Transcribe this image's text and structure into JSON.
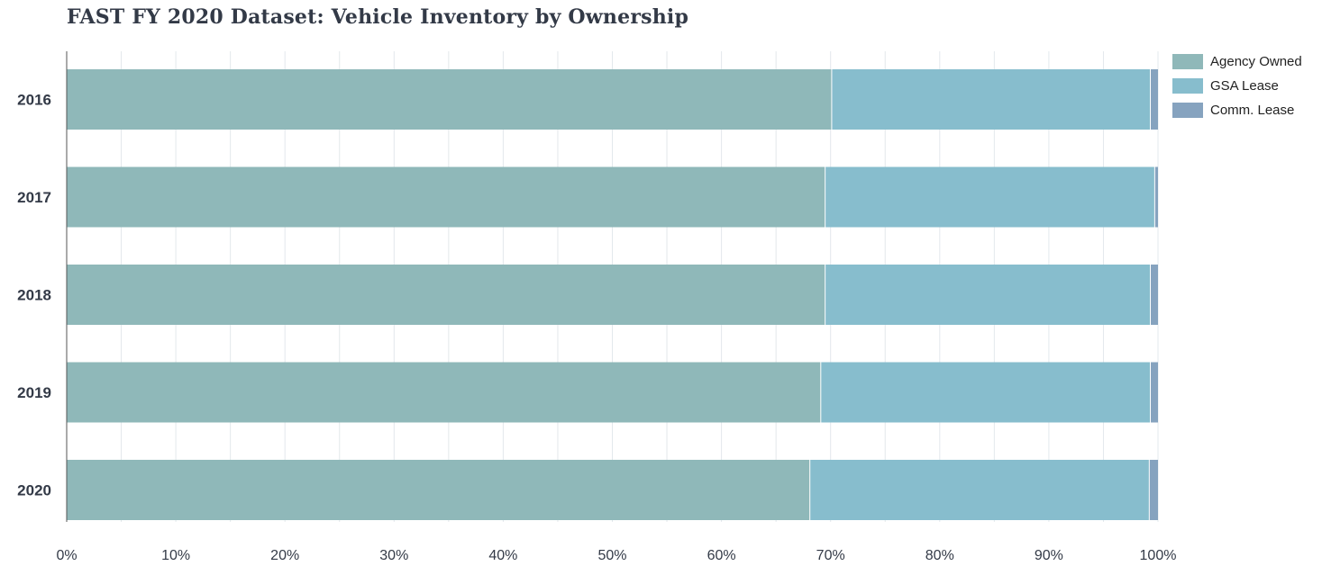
{
  "title": "FAST FY 2020 Dataset: Vehicle Inventory by Ownership",
  "colors": {
    "agency_owned": "#8fb8b9",
    "gsa_lease": "#87bdcd",
    "comm_lease": "#86a3bf",
    "grid": "#e3e8ec",
    "axis": "#555555"
  },
  "chart_data": {
    "type": "bar",
    "orientation": "horizontal",
    "stacked": true,
    "normalized": true,
    "title": "FAST FY 2020 Dataset: Vehicle Inventory by Ownership",
    "categories": [
      "2016",
      "2017",
      "2018",
      "2019",
      "2020"
    ],
    "series": [
      {
        "name": "Agency Owned",
        "values": [
          70.1,
          69.5,
          69.5,
          69.1,
          68.1
        ]
      },
      {
        "name": "GSA Lease",
        "values": [
          29.2,
          30.2,
          29.8,
          30.2,
          31.1
        ]
      },
      {
        "name": "Comm. Lease",
        "values": [
          0.7,
          0.3,
          0.7,
          0.7,
          0.8
        ]
      }
    ],
    "xlim": [
      0,
      100
    ],
    "xticks": [
      "0%",
      "10%",
      "20%",
      "30%",
      "40%",
      "50%",
      "60%",
      "70%",
      "80%",
      "90%",
      "100%"
    ],
    "xlabel": "",
    "ylabel": "",
    "grid": true,
    "legend_position": "top-right"
  },
  "legend": [
    {
      "label": "Agency Owned",
      "color": "#8fb8b9"
    },
    {
      "label": "GSA Lease",
      "color": "#87bdcd"
    },
    {
      "label": "Comm. Lease",
      "color": "#86a3bf"
    }
  ]
}
